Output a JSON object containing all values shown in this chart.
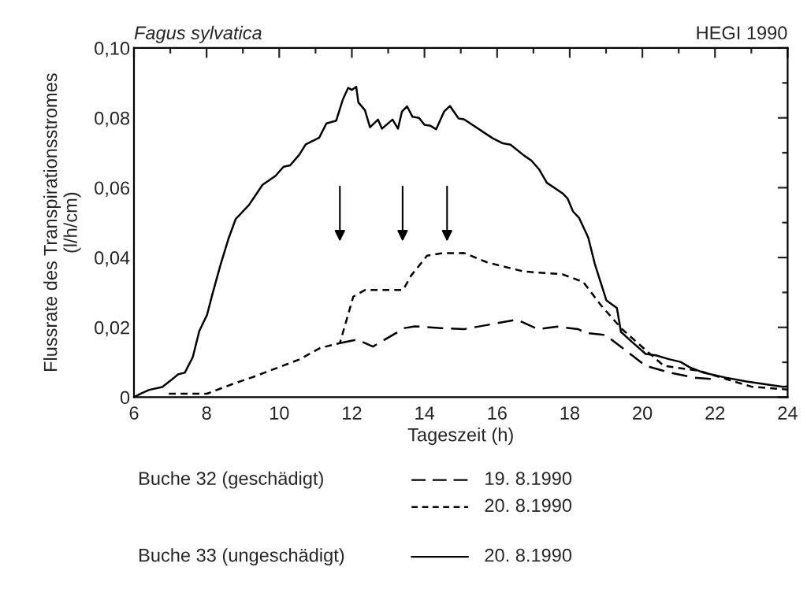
{
  "chart_data": {
    "type": "line",
    "title": "Fagus sylvatica",
    "subtitle": "HEGI 1990",
    "xlabel": "Tageszeit (h)",
    "ylabel": "Flussrate des Transpirationsstromes\n(l/h/cm)",
    "xlim": [
      6,
      24
    ],
    "xticks": [
      6,
      8,
      10,
      12,
      14,
      16,
      18,
      20,
      22,
      24
    ],
    "ylim": [
      0,
      0.1
    ],
    "yticks": [
      {
        "value": 0,
        "label": "0"
      },
      {
        "value": 0.02,
        "label": "0,02"
      },
      {
        "value": 0.04,
        "label": "0,04"
      },
      {
        "value": 0.06,
        "label": "0,06"
      },
      {
        "value": 0.08,
        "label": "0,08"
      },
      {
        "value": 0.1,
        "label": "0,10"
      }
    ],
    "grid": false,
    "legend": "bottom",
    "marker": "none",
    "annotations": [
      "Buche 32 (geschädigt)",
      "Buche 33 (ungeschädigt)"
    ],
    "series": [
      {
        "name": "19. 8.1990",
        "color": "#000000",
        "line_style": "dashed",
        "x": [
          11.67,
          12.14,
          12.58,
          13.45,
          13.74,
          14.46,
          15.09,
          16.55,
          17.12,
          17.66,
          18.23,
          18.44,
          18.98,
          19.44,
          20.09,
          20.73,
          21.44,
          21.94
        ],
        "values": [
          0.0155,
          0.0165,
          0.0145,
          0.0198,
          0.0203,
          0.0198,
          0.0195,
          0.0222,
          0.0195,
          0.0202,
          0.0195,
          0.0184,
          0.0178,
          0.0142,
          0.009,
          0.0071,
          0.0056,
          0.0052
        ]
      },
      {
        "name": "20. 8.1990",
        "color": "#000000",
        "line_style": "dotted",
        "x": [
          6.96,
          8.01,
          8.67,
          9.39,
          9.97,
          10.55,
          11.13,
          11.67,
          12.04,
          12.36,
          13.41,
          13.63,
          14.07,
          14.46,
          15.09,
          15.73,
          16.73,
          17.8,
          18.37,
          18.87,
          19.44,
          20.09,
          20.59,
          21.59,
          22.3,
          23.01,
          24
        ],
        "values": [
          0.001,
          0.001,
          0.0036,
          0.0062,
          0.0085,
          0.0108,
          0.0141,
          0.0155,
          0.0288,
          0.0307,
          0.0307,
          0.0348,
          0.0405,
          0.0412,
          0.0413,
          0.0386,
          0.036,
          0.0352,
          0.033,
          0.0262,
          0.0195,
          0.0135,
          0.009,
          0.0075,
          0.0052,
          0.003,
          0.0022
        ]
      },
      {
        "name": "20. 8.1990",
        "color": "#000000",
        "line_style": "solid",
        "x": [
          6.0,
          6.2,
          6.42,
          6.78,
          7.0,
          7.22,
          7.4,
          7.62,
          7.8,
          8.01,
          8.16,
          8.38,
          8.6,
          8.8,
          9.17,
          9.54,
          9.9,
          10.12,
          10.3,
          10.55,
          10.73,
          11.1,
          11.3,
          11.57,
          11.75,
          11.9,
          12.0,
          12.12,
          12.18,
          12.36,
          12.5,
          12.72,
          12.83,
          13.12,
          13.27,
          13.38,
          13.52,
          13.67,
          13.85,
          14.0,
          14.17,
          14.32,
          14.54,
          14.7,
          14.94,
          15.09,
          15.87,
          16.16,
          16.37,
          16.73,
          16.94,
          17.16,
          17.37,
          17.8,
          17.94,
          18.09,
          18.26,
          18.51,
          18.69,
          19.01,
          19.3,
          19.41,
          19.73,
          20.09,
          20.37,
          20.73,
          21.05,
          21.3,
          21.66,
          22.3,
          22.87,
          23.87,
          24
        ],
        "values": [
          0,
          0.0011,
          0.0021,
          0.0029,
          0.0047,
          0.0066,
          0.007,
          0.0115,
          0.019,
          0.0235,
          0.0295,
          0.0378,
          0.0453,
          0.051,
          0.0551,
          0.0608,
          0.0634,
          0.066,
          0.0664,
          0.0694,
          0.0724,
          0.0743,
          0.0784,
          0.0792,
          0.0852,
          0.0886,
          0.088,
          0.0889,
          0.0844,
          0.0822,
          0.0773,
          0.0795,
          0.0769,
          0.0795,
          0.0769,
          0.0818,
          0.0833,
          0.0803,
          0.08,
          0.078,
          0.0777,
          0.0767,
          0.0818,
          0.0834,
          0.0798,
          0.0796,
          0.0742,
          0.0727,
          0.0723,
          0.0693,
          0.0678,
          0.0652,
          0.0614,
          0.0584,
          0.0569,
          0.0532,
          0.0513,
          0.0457,
          0.0382,
          0.0277,
          0.0255,
          0.0187,
          0.0157,
          0.0124,
          0.012,
          0.0109,
          0.0101,
          0.0086,
          0.0071,
          0.0056,
          0.0045,
          0.003,
          0.0031
        ]
      }
    ]
  }
}
